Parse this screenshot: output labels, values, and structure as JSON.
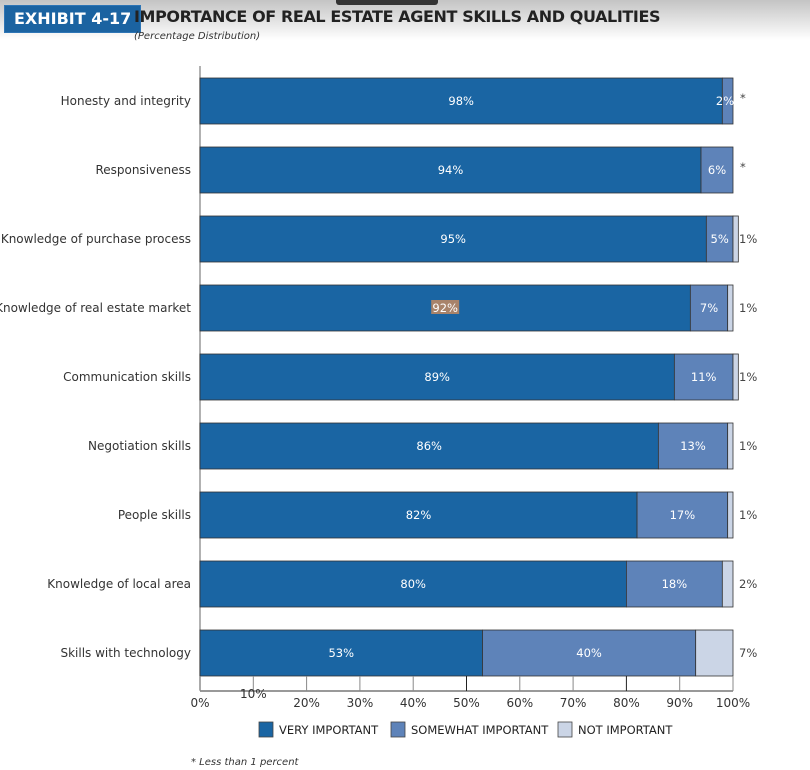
{
  "header": {
    "exhibit_label": "EXHIBIT 4-17",
    "title": "IMPORTANCE OF REAL ESTATE AGENT SKILLS AND QUALITIES",
    "subtitle": "(Percentage Distribution)"
  },
  "chart_data": {
    "type": "bar",
    "orientation": "horizontal",
    "stacked": true,
    "title": "IMPORTANCE OF REAL ESTATE AGENT SKILLS AND QUALITIES",
    "subtitle": "(Percentage Distribution)",
    "xlabel": "",
    "ylabel": "",
    "xlim": [
      0,
      100
    ],
    "xticks": [
      "0%",
      "10%",
      "20%",
      "30%",
      "40%",
      "50%",
      "60%",
      "70%",
      "80%",
      "90%",
      "100%"
    ],
    "categories": [
      "Honesty and integrity",
      "Responsiveness",
      "Knowledge of purchase process",
      "Knowledge of real estate market",
      "Communication skills",
      "Negotiation skills",
      "People skills",
      "Knowledge of local area",
      "Skills with technology"
    ],
    "series": [
      {
        "name": "VERY IMPORTANT",
        "color": "#1a65a3",
        "values": [
          98,
          94,
          95,
          92,
          89,
          86,
          82,
          80,
          53
        ],
        "labels": [
          "98%",
          "94%",
          "95%",
          "92%",
          "89%",
          "86%",
          "82%",
          "80%",
          "53%"
        ]
      },
      {
        "name": "SOMEWHAT IMPORTANT",
        "color": "#5e83b9",
        "values": [
          2,
          6,
          5,
          7,
          11,
          13,
          17,
          18,
          40
        ],
        "labels": [
          "2%",
          "6%",
          "5%",
          "7%",
          "11%",
          "13%",
          "17%",
          "18%",
          "40%"
        ]
      },
      {
        "name": "NOT IMPORTANT",
        "color": "#cbd5e6",
        "values": [
          0,
          0,
          1,
          1,
          1,
          1,
          1,
          2,
          7
        ],
        "labels": [
          "*",
          "*",
          "1%",
          "1%",
          "1%",
          "1%",
          "1%",
          "2%",
          "7%"
        ]
      }
    ],
    "highlighted_label": {
      "category": "Knowledge of real estate market",
      "series": "VERY IMPORTANT",
      "color": "#a8836a"
    },
    "legend": {
      "position": "bottom",
      "entries": [
        "VERY IMPORTANT",
        "SOMEWHAT IMPORTANT",
        "NOT IMPORTANT"
      ]
    },
    "footnote": "* Less than 1 percent",
    "grid": false
  }
}
